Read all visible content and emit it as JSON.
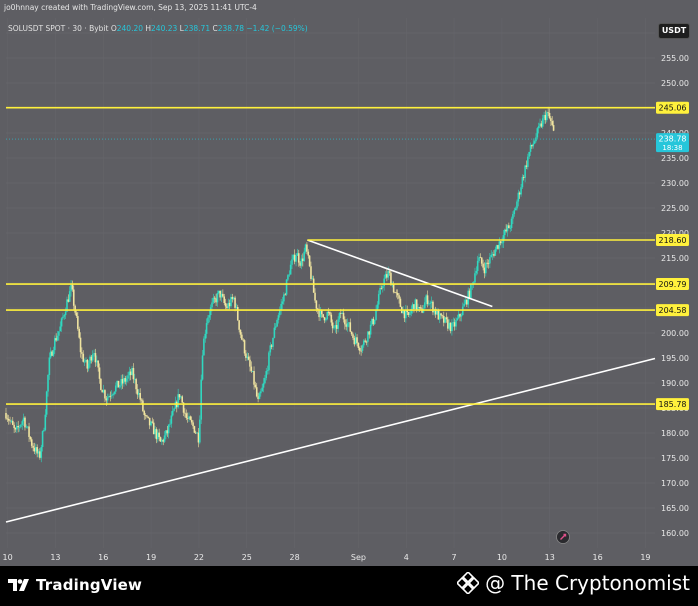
{
  "header": {
    "credit": "jo0hnnay created with TradingView.com, Sep 13, 2025 11:41 UTC-4"
  },
  "legend": {
    "symbol": "SOLUSDT SPOT · 30 · Bybit",
    "open_label": "O",
    "open": "240.20",
    "high_label": "H",
    "high": "240.23",
    "low_label": "L",
    "low": "238.71",
    "close_label": "C",
    "close": "238.78",
    "change": "−1.42 (−0.59%)"
  },
  "currency": "USDT",
  "footer": {
    "brand": "TradingView",
    "watermark": "@ The Cryptonomist"
  },
  "colors": {
    "background": "#5e5e63",
    "level_line": "#fff13c",
    "trend_line": "#ffffff",
    "candle_up": "#30d8c0",
    "candle_down": "#f0e4a0",
    "current_price": "#26c6da"
  },
  "chart_data": {
    "type": "candlestick",
    "ylim": [
      157,
      263
    ],
    "y_ticks": [
      160,
      165,
      170,
      175,
      180,
      185,
      190,
      195,
      200,
      205,
      210,
      215,
      220,
      225,
      230,
      235,
      240,
      245,
      250,
      255,
      260
    ],
    "x_ticks": [
      {
        "day": 10,
        "label": "10"
      },
      {
        "day": 13,
        "label": "13"
      },
      {
        "day": 16,
        "label": "16"
      },
      {
        "day": 19,
        "label": "19"
      },
      {
        "day": 22,
        "label": "22"
      },
      {
        "day": 25,
        "label": "25"
      },
      {
        "day": 28,
        "label": "28"
      },
      {
        "day": 32,
        "label": "Sep"
      },
      {
        "day": 35,
        "label": "4"
      },
      {
        "day": 38,
        "label": "7"
      },
      {
        "day": 41,
        "label": "10"
      },
      {
        "day": 44,
        "label": "13"
      },
      {
        "day": 47,
        "label": "16"
      },
      {
        "day": 50,
        "label": "19"
      }
    ],
    "x_range": [
      9.9,
      50.6
    ],
    "levels": [
      {
        "price": 245.06,
        "label": "245.06"
      },
      {
        "price": 218.6,
        "label": "218.60"
      },
      {
        "price": 209.79,
        "label": "209.79"
      },
      {
        "price": 204.58,
        "label": "204.58"
      },
      {
        "price": 185.78,
        "label": "185.78"
      }
    ],
    "trendlines": [
      {
        "from": {
          "day": 9.9,
          "price": 162.2
        },
        "to": {
          "day": 50.6,
          "price": 194.9
        }
      },
      {
        "from": {
          "day": 28.8,
          "price": 218.6
        },
        "to": {
          "day": 40.4,
          "price": 205.3
        }
      }
    ],
    "current_price": {
      "value": 238.78,
      "label": "238.78",
      "countdown": "18:38"
    },
    "price_path": [
      {
        "day": 9.9,
        "price": 184
      },
      {
        "day": 10.5,
        "price": 180
      },
      {
        "day": 11.0,
        "price": 183
      },
      {
        "day": 11.5,
        "price": 178
      },
      {
        "day": 12.0,
        "price": 175
      },
      {
        "day": 12.3,
        "price": 182
      },
      {
        "day": 12.6,
        "price": 194
      },
      {
        "day": 12.9,
        "price": 198
      },
      {
        "day": 13.3,
        "price": 201
      },
      {
        "day": 13.7,
        "price": 206
      },
      {
        "day": 14.0,
        "price": 209
      },
      {
        "day": 14.3,
        "price": 203
      },
      {
        "day": 14.6,
        "price": 196
      },
      {
        "day": 15.0,
        "price": 193
      },
      {
        "day": 15.4,
        "price": 197
      },
      {
        "day": 15.8,
        "price": 190
      },
      {
        "day": 16.2,
        "price": 187
      },
      {
        "day": 16.7,
        "price": 189
      },
      {
        "day": 17.2,
        "price": 190
      },
      {
        "day": 17.8,
        "price": 192
      },
      {
        "day": 18.3,
        "price": 187
      },
      {
        "day": 18.6,
        "price": 183
      },
      {
        "day": 19.1,
        "price": 181
      },
      {
        "day": 19.6,
        "price": 178
      },
      {
        "day": 20.0,
        "price": 180
      },
      {
        "day": 20.4,
        "price": 184
      },
      {
        "day": 20.8,
        "price": 188
      },
      {
        "day": 21.2,
        "price": 183
      },
      {
        "day": 21.7,
        "price": 181
      },
      {
        "day": 22.0,
        "price": 179
      },
      {
        "day": 22.2,
        "price": 196
      },
      {
        "day": 22.5,
        "price": 203
      },
      {
        "day": 22.9,
        "price": 206
      },
      {
        "day": 23.3,
        "price": 208
      },
      {
        "day": 23.7,
        "price": 205
      },
      {
        "day": 24.2,
        "price": 207
      },
      {
        "day": 24.6,
        "price": 200
      },
      {
        "day": 25.0,
        "price": 195
      },
      {
        "day": 25.4,
        "price": 191
      },
      {
        "day": 25.7,
        "price": 186
      },
      {
        "day": 26.1,
        "price": 190
      },
      {
        "day": 26.5,
        "price": 197
      },
      {
        "day": 26.9,
        "price": 203
      },
      {
        "day": 27.3,
        "price": 207
      },
      {
        "day": 27.7,
        "price": 213
      },
      {
        "day": 28.1,
        "price": 216
      },
      {
        "day": 28.4,
        "price": 214
      },
      {
        "day": 28.7,
        "price": 217
      },
      {
        "day": 29.0,
        "price": 212
      },
      {
        "day": 29.3,
        "price": 206
      },
      {
        "day": 29.7,
        "price": 203
      },
      {
        "day": 30.1,
        "price": 204
      },
      {
        "day": 30.5,
        "price": 200
      },
      {
        "day": 30.9,
        "price": 204
      },
      {
        "day": 31.3,
        "price": 202
      },
      {
        "day": 31.7,
        "price": 199
      },
      {
        "day": 32.2,
        "price": 197
      },
      {
        "day": 32.6,
        "price": 200
      },
      {
        "day": 33.0,
        "price": 203
      },
      {
        "day": 33.5,
        "price": 210
      },
      {
        "day": 33.9,
        "price": 212
      },
      {
        "day": 34.3,
        "price": 208
      },
      {
        "day": 34.7,
        "price": 205
      },
      {
        "day": 35.1,
        "price": 203
      },
      {
        "day": 35.5,
        "price": 206
      },
      {
        "day": 35.9,
        "price": 204
      },
      {
        "day": 36.3,
        "price": 207
      },
      {
        "day": 36.7,
        "price": 205
      },
      {
        "day": 37.1,
        "price": 203
      },
      {
        "day": 37.5,
        "price": 202
      },
      {
        "day": 37.9,
        "price": 201
      },
      {
        "day": 38.3,
        "price": 203
      },
      {
        "day": 38.7,
        "price": 206
      },
      {
        "day": 39.1,
        "price": 209
      },
      {
        "day": 39.5,
        "price": 215
      },
      {
        "day": 39.9,
        "price": 213
      },
      {
        "day": 40.3,
        "price": 215
      },
      {
        "day": 40.8,
        "price": 218
      },
      {
        "day": 41.2,
        "price": 220
      },
      {
        "day": 41.6,
        "price": 222
      },
      {
        "day": 42.0,
        "price": 227
      },
      {
        "day": 42.3,
        "price": 231
      },
      {
        "day": 42.7,
        "price": 236
      },
      {
        "day": 43.1,
        "price": 239
      },
      {
        "day": 43.5,
        "price": 242
      },
      {
        "day": 43.8,
        "price": 244
      },
      {
        "day": 44.1,
        "price": 242
      },
      {
        "day": 44.3,
        "price": 239
      }
    ]
  }
}
